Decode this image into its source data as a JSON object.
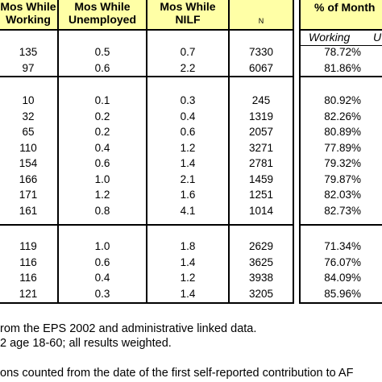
{
  "header": {
    "col1": [
      "Mos While",
      "Working"
    ],
    "col2": [
      "Mos While",
      "Unemployed"
    ],
    "col3": [
      "Mos While",
      "NILF"
    ],
    "col4": "N",
    "col5": "% of Month",
    "sub_working": "Working",
    "sub_next": "U"
  },
  "groups": [
    [
      {
        "working": "135",
        "unemployed": "0.5",
        "nilf": "0.7",
        "n": "7330",
        "pct": "78.72%"
      },
      {
        "working": "97",
        "unemployed": "0.6",
        "nilf": "2.2",
        "n": "6067",
        "pct": "81.86%"
      }
    ],
    [
      {
        "working": "10",
        "unemployed": "0.1",
        "nilf": "0.3",
        "n": "245",
        "pct": "80.92%"
      },
      {
        "working": "32",
        "unemployed": "0.2",
        "nilf": "0.4",
        "n": "1319",
        "pct": "82.26%"
      },
      {
        "working": "65",
        "unemployed": "0.2",
        "nilf": "0.6",
        "n": "2057",
        "pct": "80.89%"
      },
      {
        "working": "110",
        "unemployed": "0.4",
        "nilf": "1.2",
        "n": "3271",
        "pct": "77.89%"
      },
      {
        "working": "154",
        "unemployed": "0.6",
        "nilf": "1.4",
        "n": "2781",
        "pct": "79.32%"
      },
      {
        "working": "166",
        "unemployed": "1.0",
        "nilf": "2.1",
        "n": "1459",
        "pct": "79.87%"
      },
      {
        "working": "171",
        "unemployed": "1.2",
        "nilf": "1.6",
        "n": "1251",
        "pct": "82.03%"
      },
      {
        "working": "161",
        "unemployed": "0.8",
        "nilf": "4.1",
        "n": "1014",
        "pct": "82.73%"
      }
    ],
    [
      {
        "working": "119",
        "unemployed": "1.0",
        "nilf": "1.8",
        "n": "2629",
        "pct": "71.34%"
      },
      {
        "working": "116",
        "unemployed": "0.6",
        "nilf": "1.4",
        "n": "3625",
        "pct": "76.07%"
      },
      {
        "working": "116",
        "unemployed": "0.4",
        "nilf": "1.2",
        "n": "3938",
        "pct": "84.09%"
      },
      {
        "working": "121",
        "unemployed": "0.3",
        "nilf": "1.4",
        "n": "3205",
        "pct": "85.96%"
      }
    ]
  ],
  "notes": [
    "rom the EPS 2002 and administrative linked data.",
    "2 age 18-60; all results weighted.",
    "ons counted from the date of the first self-reported contribution to AF"
  ]
}
